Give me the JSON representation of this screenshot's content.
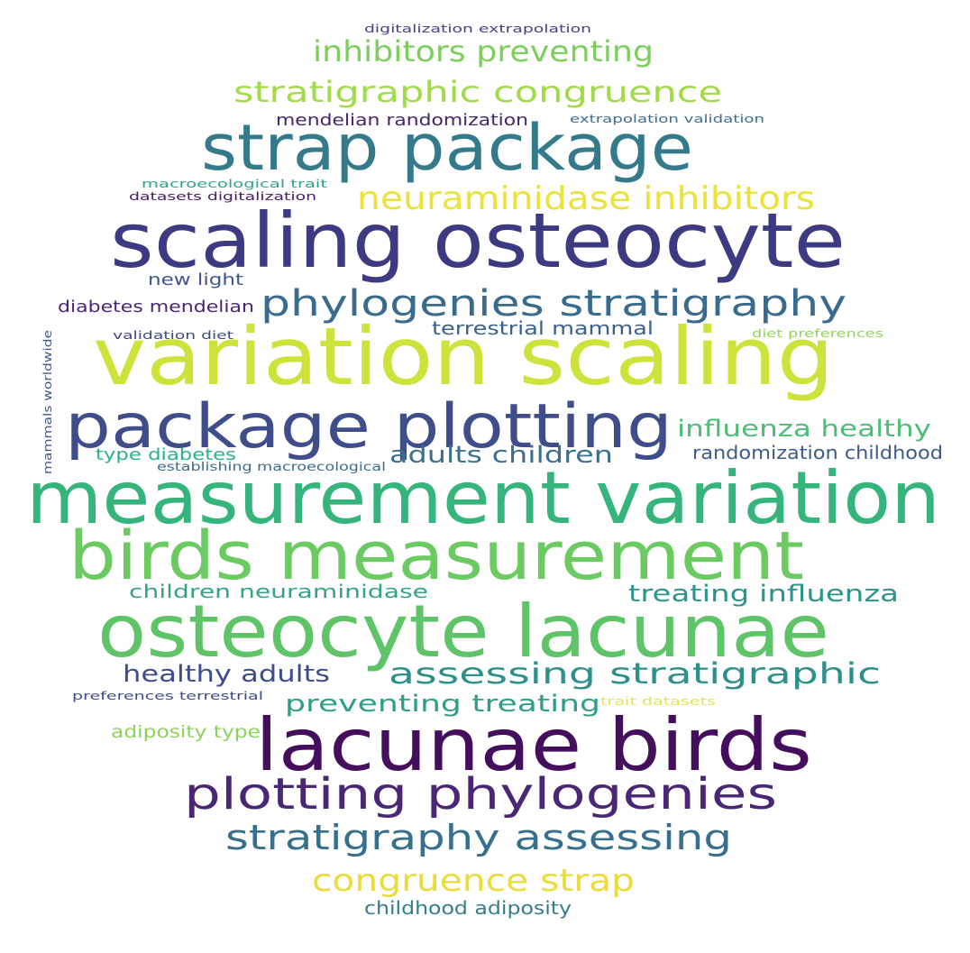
{
  "phrases": [
    {
      "text": "digitalization extrapolation",
      "color": "#4b3d8b"
    },
    {
      "text": "inhibitors preventing",
      "color": "#7ccf5c"
    },
    {
      "text": "stratigraphic congruence",
      "color": "#a2db48"
    },
    {
      "text": "mendelian randomization",
      "color": "#46246b"
    },
    {
      "text": "extrapolation validation",
      "color": "#3e6e8f"
    },
    {
      "text": "strap package",
      "color": "#347a8b"
    },
    {
      "text": "macroecological trait",
      "color": "#2ea486"
    },
    {
      "text": "datasets digitalization",
      "color": "#4a1a66"
    },
    {
      "text": "neuraminidase inhibitors",
      "color": "#ece33a"
    },
    {
      "text": "scaling osteocyte",
      "color": "#3c3a80"
    },
    {
      "text": "new light",
      "color": "#3f5590"
    },
    {
      "text": "phylogenies stratigraphy",
      "color": "#396b8e"
    },
    {
      "text": "diabetes mendelian",
      "color": "#4a2672"
    },
    {
      "text": "terrestrial mammal",
      "color": "#3a618c"
    },
    {
      "text": "validation diet",
      "color": "#3e4a89"
    },
    {
      "text": "diet preferences",
      "color": "#8fd55a"
    },
    {
      "text": "mammals worldwide",
      "color": "#40568d"
    },
    {
      "text": "variation scaling",
      "color": "#cde23a"
    },
    {
      "text": "package plotting",
      "color": "#3f4e8a"
    },
    {
      "text": "influenza healthy",
      "color": "#4ebd77"
    },
    {
      "text": "type diabetes",
      "color": "#2db08a"
    },
    {
      "text": "adults children",
      "color": "#3c6e8d"
    },
    {
      "text": "randomization childhood",
      "color": "#3d5a8c"
    },
    {
      "text": "establishing macroecological",
      "color": "#3a6a8e"
    },
    {
      "text": "measurement variation",
      "color": "#35b47c"
    },
    {
      "text": "birds measurement",
      "color": "#6bcb62"
    },
    {
      "text": "children neuraminidase",
      "color": "#34a386"
    },
    {
      "text": "treating influenza",
      "color": "#2c958b"
    },
    {
      "text": "osteocyte lacunae",
      "color": "#5fc468"
    },
    {
      "text": "healthy adults",
      "color": "#3d4c8a"
    },
    {
      "text": "assessing stratigraphic",
      "color": "#2f8f8a"
    },
    {
      "text": "preventing treating",
      "color": "#2e9e87"
    },
    {
      "text": "preferences terrestrial",
      "color": "#3d4b8a"
    },
    {
      "text": "trait datasets",
      "color": "#e2e35a"
    },
    {
      "text": "adiposity type",
      "color": "#8ad25c"
    },
    {
      "text": "lacunae birds",
      "color": "#450e5c"
    },
    {
      "text": "plotting phylogenies",
      "color": "#4a2775"
    },
    {
      "text": "stratigraphy assessing",
      "color": "#37708c"
    },
    {
      "text": "congruence strap",
      "color": "#eadc3a"
    },
    {
      "text": "childhood adiposity",
      "color": "#357d8b"
    }
  ]
}
